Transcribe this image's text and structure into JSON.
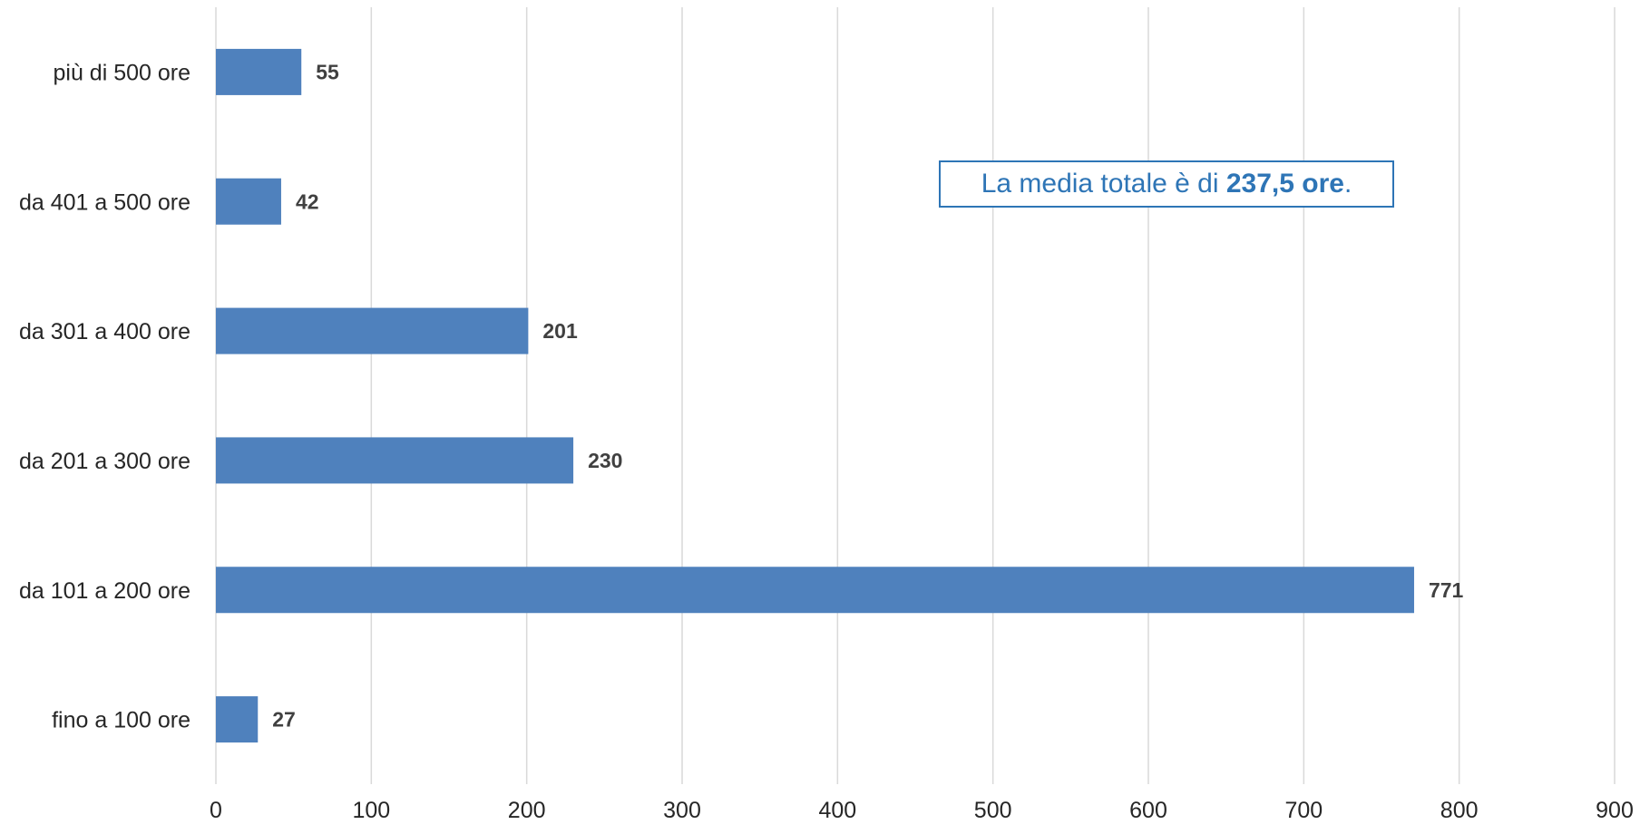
{
  "chart_data": {
    "type": "bar",
    "orientation": "horizontal",
    "categories": [
      "più di 500 ore",
      "da 401 a 500 ore",
      "da 301 a 400 ore",
      "da 201 a 300 ore",
      "da 101 a 200 ore",
      "fino a 100 ore"
    ],
    "values": [
      55,
      42,
      201,
      230,
      771,
      27
    ],
    "data_labels": [
      "55",
      "42",
      "201",
      "230",
      "771",
      "27"
    ],
    "xlim": [
      0,
      900
    ],
    "x_ticks": [
      0,
      100,
      200,
      300,
      400,
      500,
      600,
      700,
      800,
      900
    ],
    "x_tick_labels": [
      "0",
      "100",
      "200",
      "300",
      "400",
      "500",
      "600",
      "700",
      "800",
      "900"
    ],
    "grid": true,
    "bar_color": "#4f81bd",
    "title": "",
    "xlabel": "",
    "ylabel": ""
  },
  "annotation": {
    "prefix": "La media totale è di ",
    "value": "237,5 ore",
    "suffix": ".",
    "color": "#2e75b6"
  }
}
